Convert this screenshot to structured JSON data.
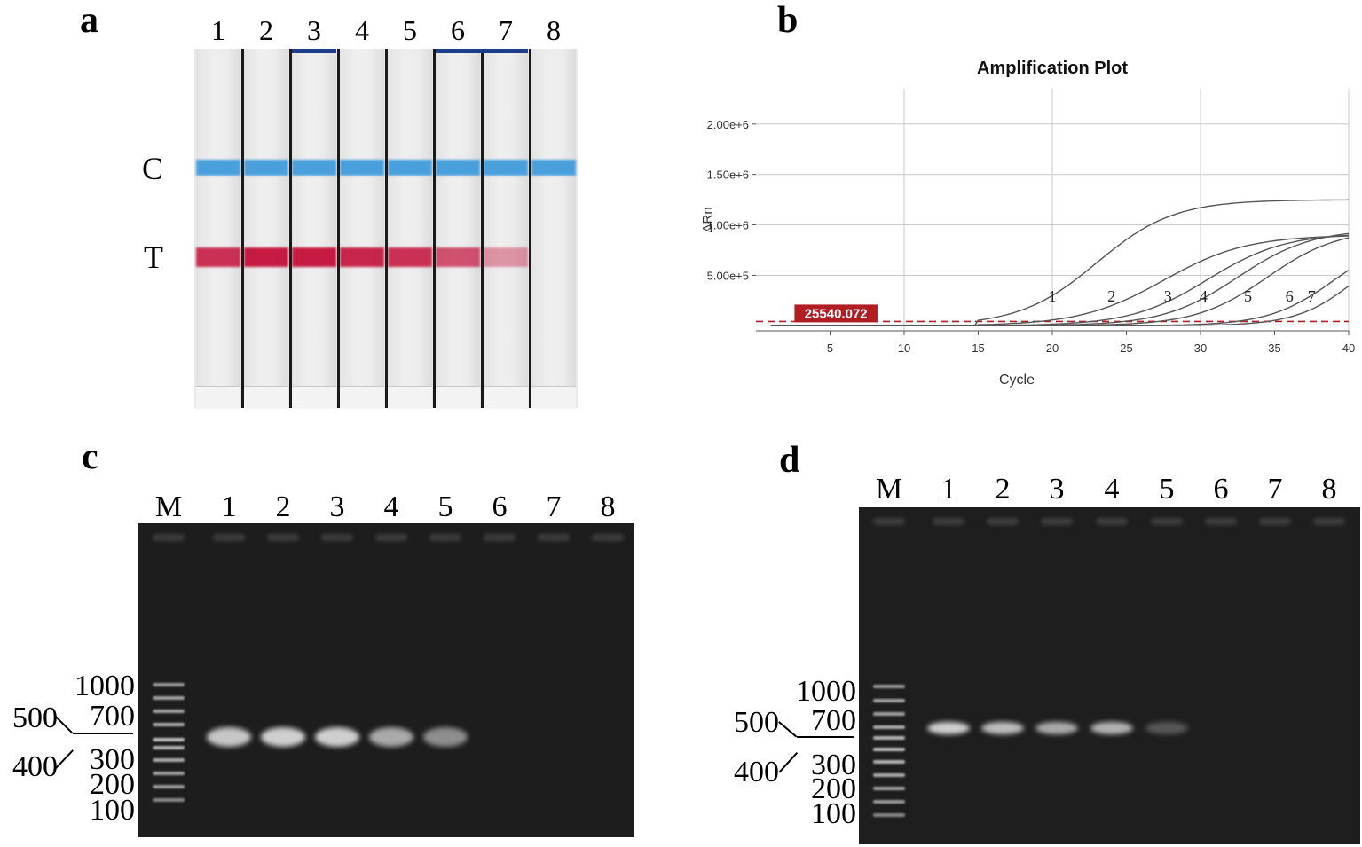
{
  "panel_a": {
    "label": "a",
    "lanes": [
      "1",
      "2",
      "3",
      "4",
      "5",
      "6",
      "7",
      "8"
    ],
    "control_label": "C",
    "test_label": "T",
    "test_intensity": [
      0.85,
      0.95,
      0.95,
      0.9,
      0.85,
      0.7,
      0.4,
      0
    ],
    "colors": {
      "control": "#4aa0dd",
      "test": "#c4103a"
    }
  },
  "panel_b": {
    "label": "b",
    "chart_data": {
      "type": "line",
      "title": "Amplification Plot",
      "xlabel": "Cycle",
      "ylabel": "ΔRn",
      "xlim": [
        0,
        40
      ],
      "ylim": [
        -50000,
        2350000
      ],
      "x_ticks": [
        "5",
        "10",
        "15",
        "20",
        "25",
        "30",
        "35",
        "40"
      ],
      "y_ticks": [
        "5.00e+5",
        "1.00e+6",
        "1.50e+6",
        "2.00e+6"
      ],
      "y_tick_values": [
        500000,
        1000000,
        1500000,
        2000000
      ],
      "threshold": {
        "value": 25540.072,
        "label": "25540.072",
        "color": "#b01e23"
      },
      "grid": true,
      "series": [
        {
          "name": "1",
          "plateau": 1250000,
          "midpoint": 23,
          "slope": 2.6,
          "label_x": 20,
          "label_y": 240000
        },
        {
          "name": "2",
          "plateau": 900000,
          "midpoint": 27.5,
          "slope": 2.8,
          "label_x": 24,
          "label_y": 240000
        },
        {
          "name": "3",
          "plateau": 920000,
          "midpoint": 30.5,
          "slope": 2.6,
          "label_x": 27.8,
          "label_y": 240000
        },
        {
          "name": "4",
          "plateau": 960000,
          "midpoint": 32.5,
          "slope": 2.5,
          "label_x": 30.2,
          "label_y": 240000
        },
        {
          "name": "5",
          "plateau": 960000,
          "midpoint": 34.5,
          "slope": 2.4,
          "label_x": 33.2,
          "label_y": 240000
        },
        {
          "name": "6",
          "plateau": 900000,
          "midpoint": 39,
          "slope": 2.2,
          "label_x": 36,
          "label_y": 240000
        },
        {
          "name": "7",
          "plateau": 900000,
          "midpoint": 40.5,
          "slope": 2.0,
          "label_x": 37.5,
          "label_y": 240000
        }
      ]
    }
  },
  "panel_c": {
    "label": "c",
    "lanes": [
      "M",
      "1",
      "2",
      "3",
      "4",
      "5",
      "6",
      "7",
      "8"
    ],
    "marker_sizes": [
      "1000",
      "700",
      "300",
      "200",
      "100"
    ],
    "left_labels": [
      "500",
      "400"
    ],
    "band_intensity": [
      0.9,
      0.95,
      0.95,
      0.75,
      0.6,
      0,
      0,
      0
    ]
  },
  "panel_d": {
    "label": "d",
    "lanes": [
      "M",
      "1",
      "2",
      "3",
      "4",
      "5",
      "6",
      "7",
      "8"
    ],
    "marker_sizes": [
      "1000",
      "700",
      "300",
      "200",
      "100"
    ],
    "left_labels": [
      "500",
      "400"
    ],
    "band_intensity": [
      0.95,
      0.85,
      0.75,
      0.8,
      0.3,
      0,
      0,
      0
    ]
  }
}
